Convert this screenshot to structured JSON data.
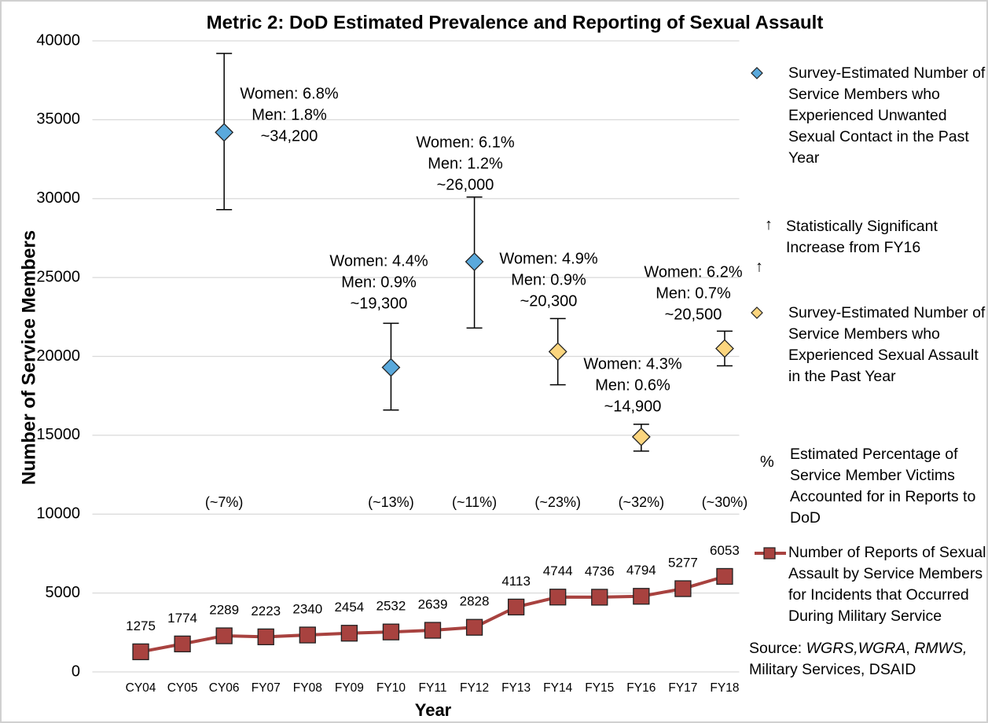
{
  "chart_data": {
    "type": "line",
    "title": "Metric 2: DoD Estimated Prevalence and Reporting of Sexual Assault",
    "x_label": "Year",
    "y_label": "Number of Service Members",
    "categories": [
      "CY04",
      "CY05",
      "CY06",
      "FY07",
      "FY08",
      "FY09",
      "FY10",
      "FY11",
      "FY12",
      "FY13",
      "FY14",
      "FY15",
      "FY16",
      "FY17",
      "FY18"
    ],
    "ylim": [
      0,
      40000
    ],
    "yticks": [
      0,
      5000,
      10000,
      15000,
      20000,
      25000,
      30000,
      35000,
      40000
    ],
    "grid": true,
    "series": [
      {
        "name": "Survey-Estimated Number of Service Members who Experienced Unwanted Sexual Contact in the Past Year",
        "type": "scatter",
        "color": "#5aa9dc",
        "values": [
          null,
          null,
          34200,
          null,
          null,
          null,
          19300,
          null,
          26000,
          null,
          null,
          null,
          null,
          null,
          null
        ],
        "lower": [
          null,
          null,
          29300,
          null,
          null,
          null,
          16600,
          null,
          21800,
          null,
          null,
          null,
          null,
          null,
          null
        ],
        "upper": [
          null,
          null,
          39200,
          null,
          null,
          null,
          22100,
          null,
          30100,
          null,
          null,
          null,
          null,
          null,
          null
        ],
        "value_labels": [
          null,
          null,
          "~34,200",
          null,
          null,
          null,
          "~19,300",
          null,
          "~26,000",
          null,
          null,
          null,
          null,
          null,
          null
        ],
        "notes": [
          null,
          null,
          [
            "Women: 6.8%",
            "Men: 1.8%"
          ],
          null,
          null,
          null,
          [
            "Women: 4.4%",
            "Men: 0.9%"
          ],
          null,
          [
            "Women: 6.1%",
            "Men: 1.2%"
          ],
          null,
          null,
          null,
          null,
          null,
          null
        ],
        "percent_labels": [
          null,
          null,
          "(~7%)",
          null,
          null,
          null,
          "(~13%)",
          null,
          "(~11%)",
          null,
          null,
          null,
          null,
          null,
          null
        ],
        "significance_marks": [
          null,
          null,
          null,
          null,
          null,
          null,
          null,
          null,
          null,
          null,
          null,
          null,
          null,
          null,
          null
        ]
      },
      {
        "name": "Survey-Estimated Number of Service Members who Experienced Sexual Assault in the Past Year",
        "type": "scatter",
        "color": "#fbd57e",
        "values": [
          null,
          null,
          null,
          null,
          null,
          null,
          null,
          null,
          null,
          null,
          20300,
          null,
          14900,
          null,
          20500
        ],
        "lower": [
          null,
          null,
          null,
          null,
          null,
          null,
          null,
          null,
          null,
          null,
          18200,
          null,
          14000,
          null,
          19400
        ],
        "upper": [
          null,
          null,
          null,
          null,
          null,
          null,
          null,
          null,
          null,
          null,
          22400,
          null,
          15700,
          null,
          21600
        ],
        "value_labels": [
          null,
          null,
          null,
          null,
          null,
          null,
          null,
          null,
          null,
          null,
          "~20,300",
          null,
          "~14,900",
          null,
          "~20,500"
        ],
        "notes": [
          null,
          null,
          null,
          null,
          null,
          null,
          null,
          null,
          null,
          null,
          [
            "Women: 4.9%",
            "Men: 0.9%"
          ],
          null,
          [
            "Women: 4.3%",
            "Men: 0.6%"
          ],
          null,
          [
            "Women: 6.2%",
            "Men: 0.7%"
          ]
        ],
        "percent_labels": [
          null,
          null,
          null,
          null,
          null,
          null,
          null,
          null,
          null,
          null,
          "(~23%)",
          null,
          "(~32%)",
          null,
          "(~30%)"
        ],
        "significance_marks": [
          null,
          null,
          null,
          null,
          null,
          null,
          null,
          null,
          null,
          null,
          null,
          null,
          null,
          null,
          "↑"
        ]
      },
      {
        "name": "Number of Reports of Sexual Assault by Service Members for Incidents that Occurred During Military Service",
        "type": "line",
        "color": "#a8423f",
        "values": [
          1275,
          1774,
          2289,
          2223,
          2340,
          2454,
          2532,
          2639,
          2828,
          4113,
          4744,
          4736,
          4794,
          5277,
          6053
        ]
      }
    ],
    "legend_notes": [
      {
        "symbol": "↑",
        "text": "Statistically Significant Increase from FY16"
      },
      {
        "symbol": "%",
        "text": "Estimated Percentage of Service Member Victims Accounted for in Reports to DoD"
      }
    ],
    "source": [
      {
        "text": "Source: ",
        "italic": false
      },
      {
        "text": "WGRS,WGRA",
        "italic": true
      },
      {
        "text": ", ",
        "italic": false
      },
      {
        "text": "RMWS,",
        "italic": true
      },
      {
        "text": " Military Services, DSAID",
        "italic": false
      }
    ]
  }
}
